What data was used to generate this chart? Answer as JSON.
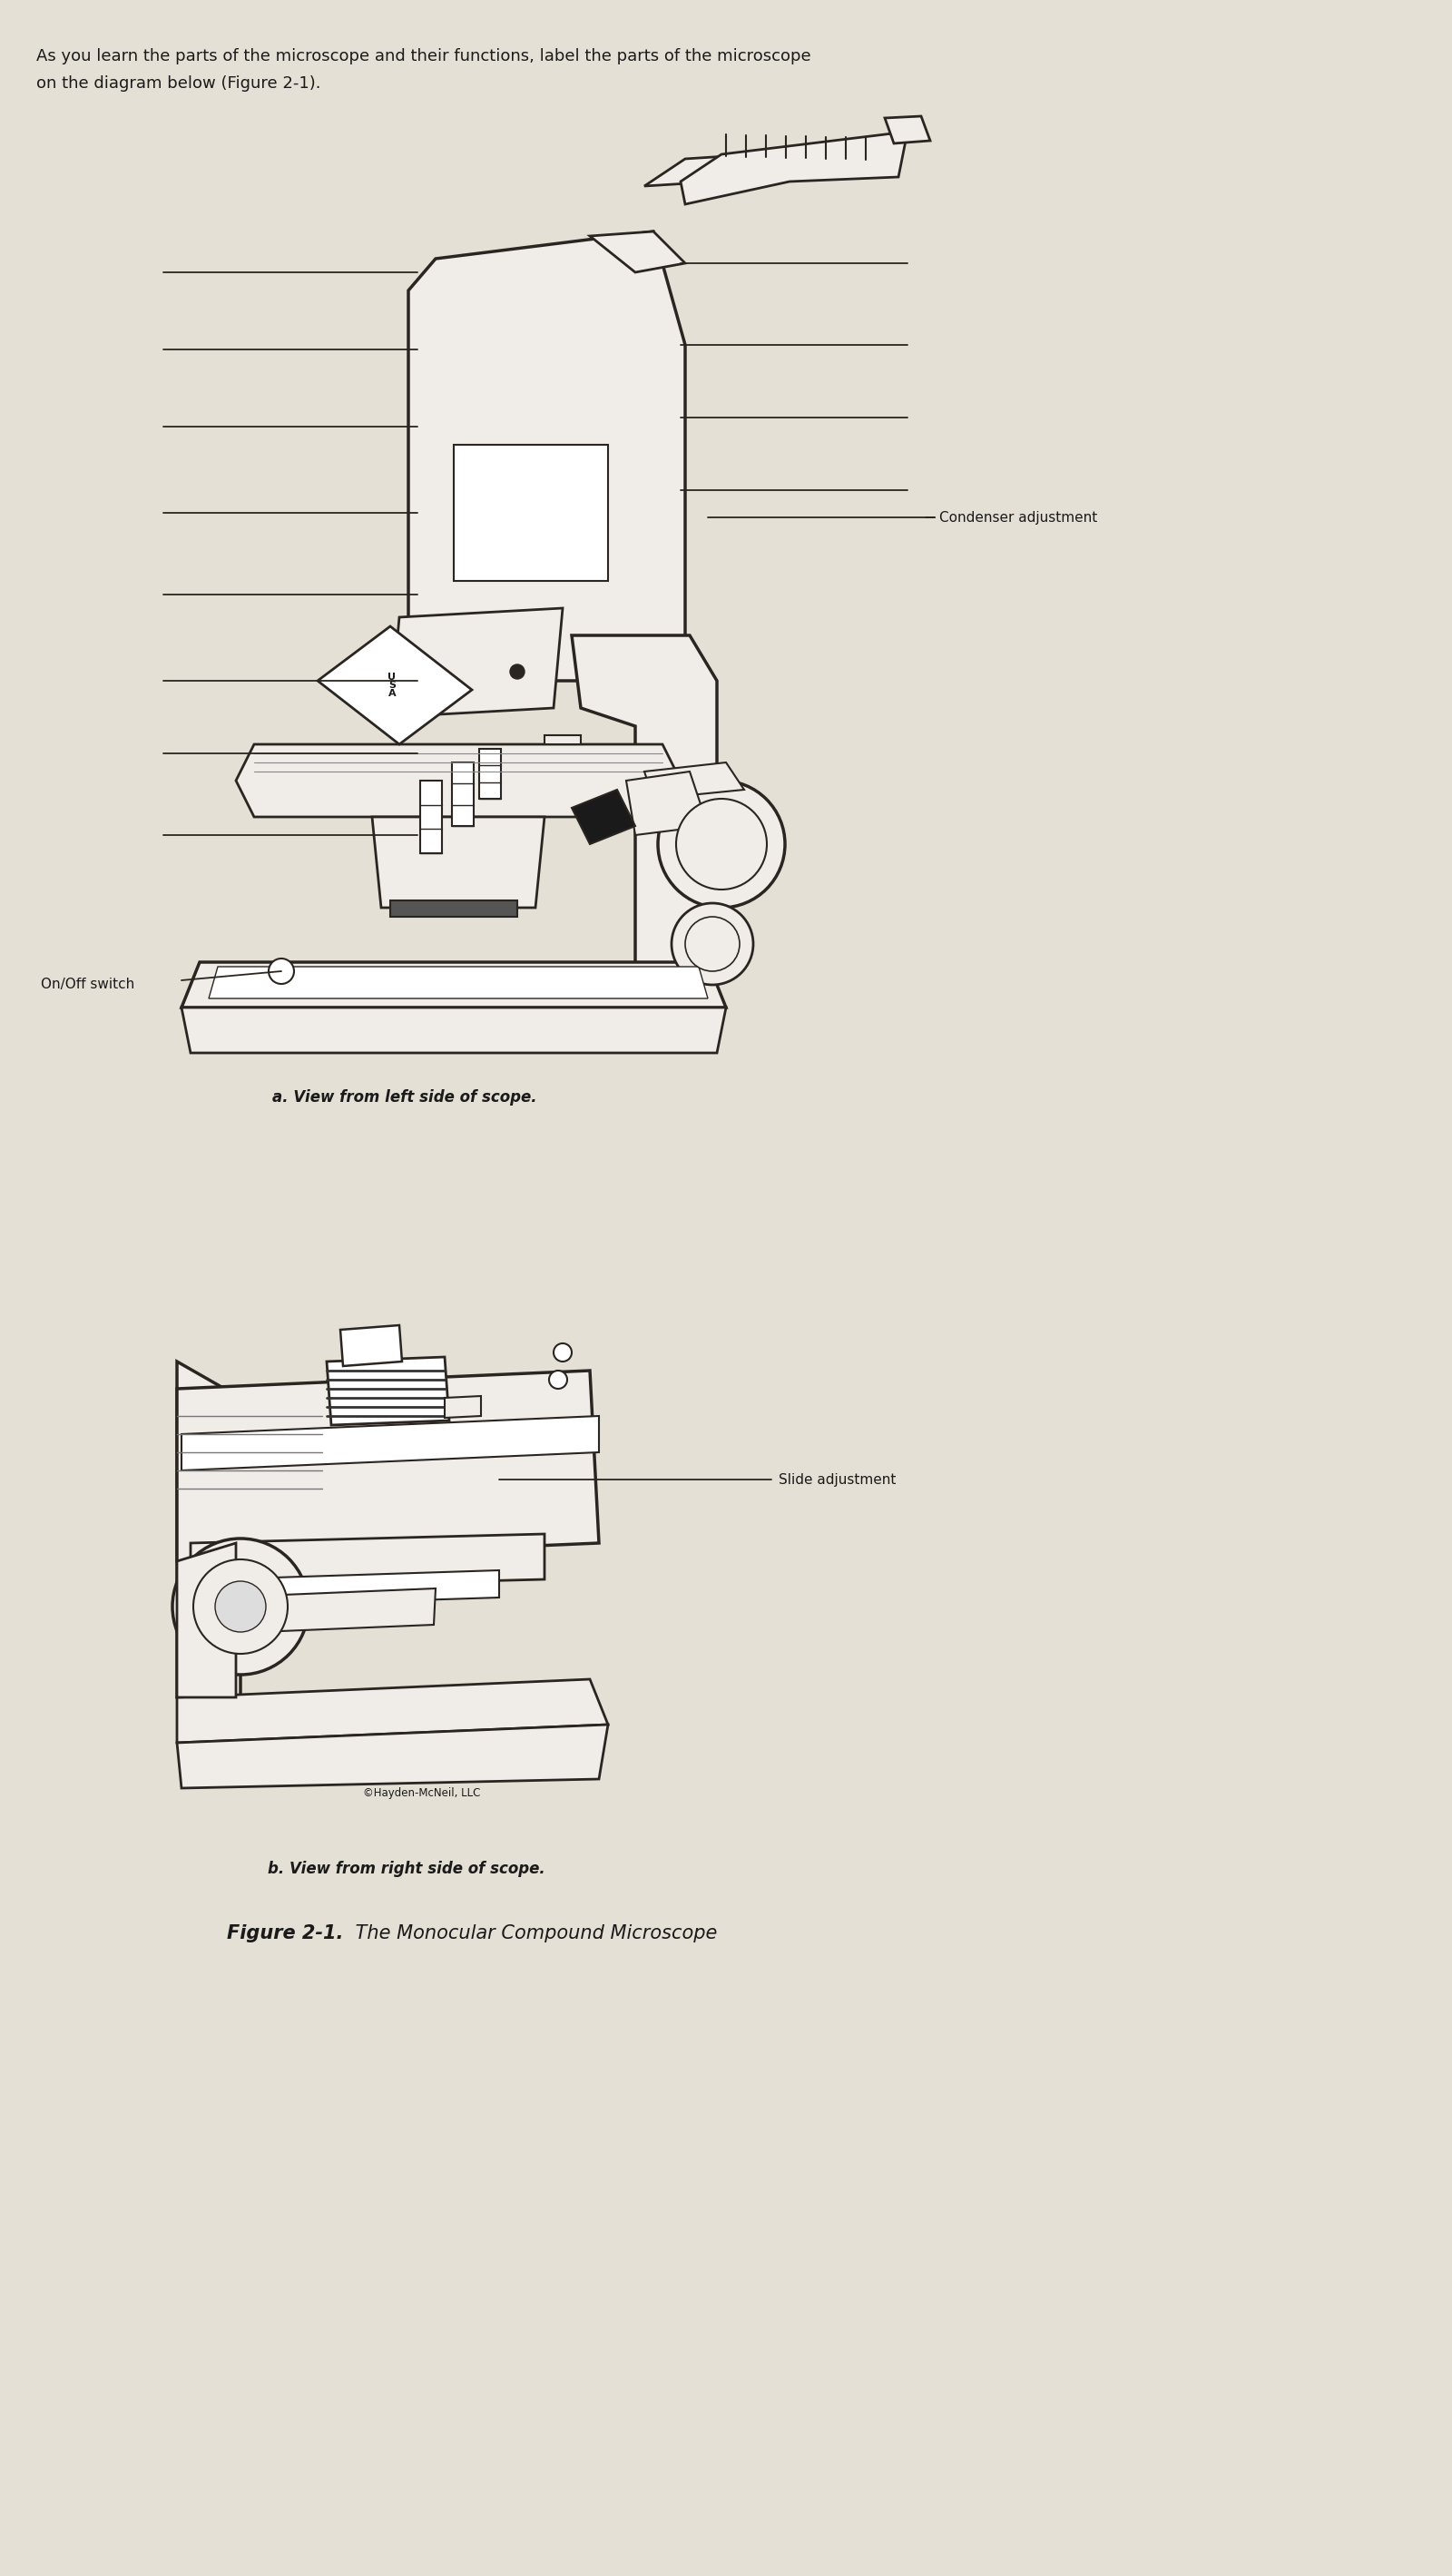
{
  "background_color": "#e5e0d5",
  "title_text": "As you learn the parts of the microscope and their functions, label the parts of the microscope\non the diagram below (Figure 2-1).",
  "label_a": "a. View from left side of scope.",
  "label_b": "b. View from right side of scope.",
  "figure_label": "Figure 2-1.",
  "figure_label2": " The Monocular Compound Microscope",
  "label_condenser": "Condenser adjustment",
  "label_onoff": "On/Off switch",
  "label_slide": "Slide adjustment",
  "copyright": "©Hayden-McNeil, LLC",
  "text_color": "#1a1a1a",
  "line_color": "#2a2520",
  "bg_color": "#e5e0d5",
  "diagram_bg": "#f0ede8"
}
